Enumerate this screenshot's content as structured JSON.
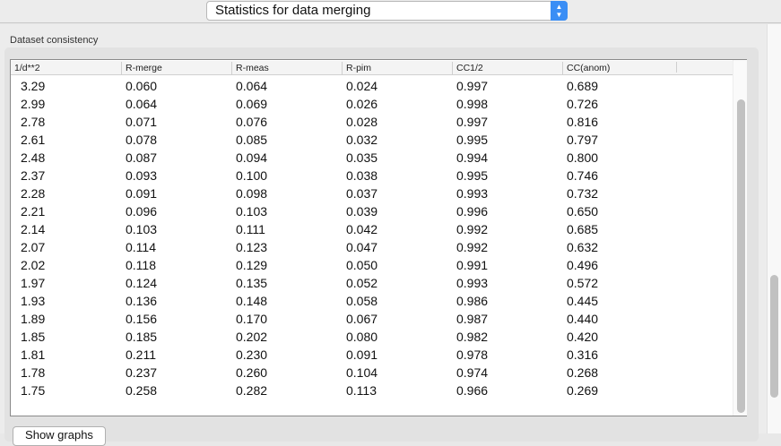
{
  "header": {
    "view_select": "Statistics for data merging",
    "select_icon": "up-down-chevron-icon"
  },
  "group": {
    "title": "Dataset consistency"
  },
  "table": {
    "columns": [
      "1/d**2",
      "R-merge",
      "R-meas",
      "R-pim",
      "CC1/2",
      "CC(anom)"
    ],
    "rows": [
      [
        "3.29",
        "0.060",
        "0.064",
        "0.024",
        "0.997",
        "0.689"
      ],
      [
        "2.99",
        "0.064",
        "0.069",
        "0.026",
        "0.998",
        "0.726"
      ],
      [
        "2.78",
        "0.071",
        "0.076",
        "0.028",
        "0.997",
        "0.816"
      ],
      [
        "2.61",
        "0.078",
        "0.085",
        "0.032",
        "0.995",
        "0.797"
      ],
      [
        "2.48",
        "0.087",
        "0.094",
        "0.035",
        "0.994",
        "0.800"
      ],
      [
        "2.37",
        "0.093",
        "0.100",
        "0.038",
        "0.995",
        "0.746"
      ],
      [
        "2.28",
        "0.091",
        "0.098",
        "0.037",
        "0.993",
        "0.732"
      ],
      [
        "2.21",
        "0.096",
        "0.103",
        "0.039",
        "0.996",
        "0.650"
      ],
      [
        "2.14",
        "0.103",
        "0.111",
        "0.042",
        "0.992",
        "0.685"
      ],
      [
        "2.07",
        "0.114",
        "0.123",
        "0.047",
        "0.992",
        "0.632"
      ],
      [
        "2.02",
        "0.118",
        "0.129",
        "0.050",
        "0.991",
        "0.496"
      ],
      [
        "1.97",
        "0.124",
        "0.135",
        "0.052",
        "0.993",
        "0.572"
      ],
      [
        "1.93",
        "0.136",
        "0.148",
        "0.058",
        "0.986",
        "0.445"
      ],
      [
        "1.89",
        "0.156",
        "0.170",
        "0.067",
        "0.987",
        "0.440"
      ],
      [
        "1.85",
        "0.185",
        "0.202",
        "0.080",
        "0.982",
        "0.420"
      ],
      [
        "1.81",
        "0.211",
        "0.230",
        "0.091",
        "0.978",
        "0.316"
      ],
      [
        "1.78",
        "0.237",
        "0.260",
        "0.104",
        "0.974",
        "0.268"
      ],
      [
        "1.75",
        "0.258",
        "0.282",
        "0.113",
        "0.966",
        "0.269"
      ]
    ]
  },
  "buttons": {
    "show_graphs": "Show graphs"
  },
  "colors": {
    "accent": "#3a8ef5",
    "background": "#ececec"
  }
}
